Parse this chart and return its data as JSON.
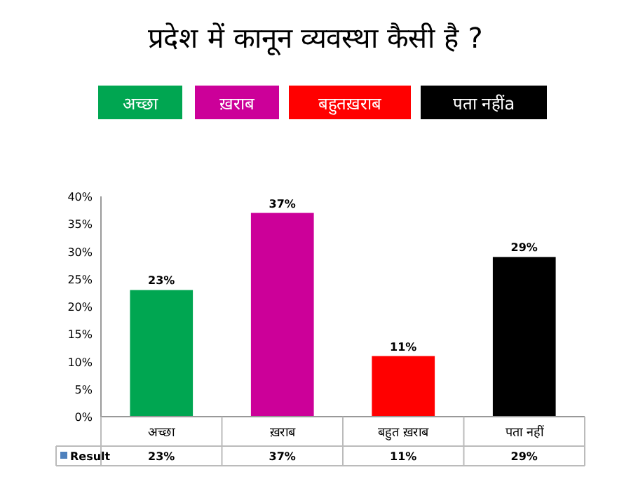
{
  "chart_data": {
    "type": "bar",
    "title": "प्रदेश में कानून व्यवस्था कैसी है ?",
    "annotations": [
      "अच्छा",
      "ख़राब",
      "बहुतख़राब",
      "पता नहींa"
    ],
    "categories": [
      "अच्छा",
      "ख़राब",
      "बहुत ख़राब",
      "पता नहीं"
    ],
    "series": [
      {
        "name": "Result",
        "color": "#4f81bd",
        "colors": [
          "#00a651",
          "#cc0099",
          "#ff0000",
          "#000000"
        ],
        "values": [
          23,
          37,
          11,
          29
        ],
        "value_labels": [
          "23%",
          "37%",
          "11%",
          "29%"
        ]
      }
    ],
    "ylim": [
      0,
      40
    ],
    "yticks": [
      {
        "value": 0,
        "label": "0%"
      },
      {
        "value": 5,
        "label": "5%"
      },
      {
        "value": 10,
        "label": "10%"
      },
      {
        "value": 15,
        "label": "15%"
      },
      {
        "value": 20,
        "label": "20%"
      },
      {
        "value": 25,
        "label": "25%"
      },
      {
        "value": 30,
        "label": "30%"
      },
      {
        "value": 35,
        "label": "35%"
      },
      {
        "value": 40,
        "label": "40%"
      }
    ],
    "grid": false,
    "legend": "bottom"
  }
}
